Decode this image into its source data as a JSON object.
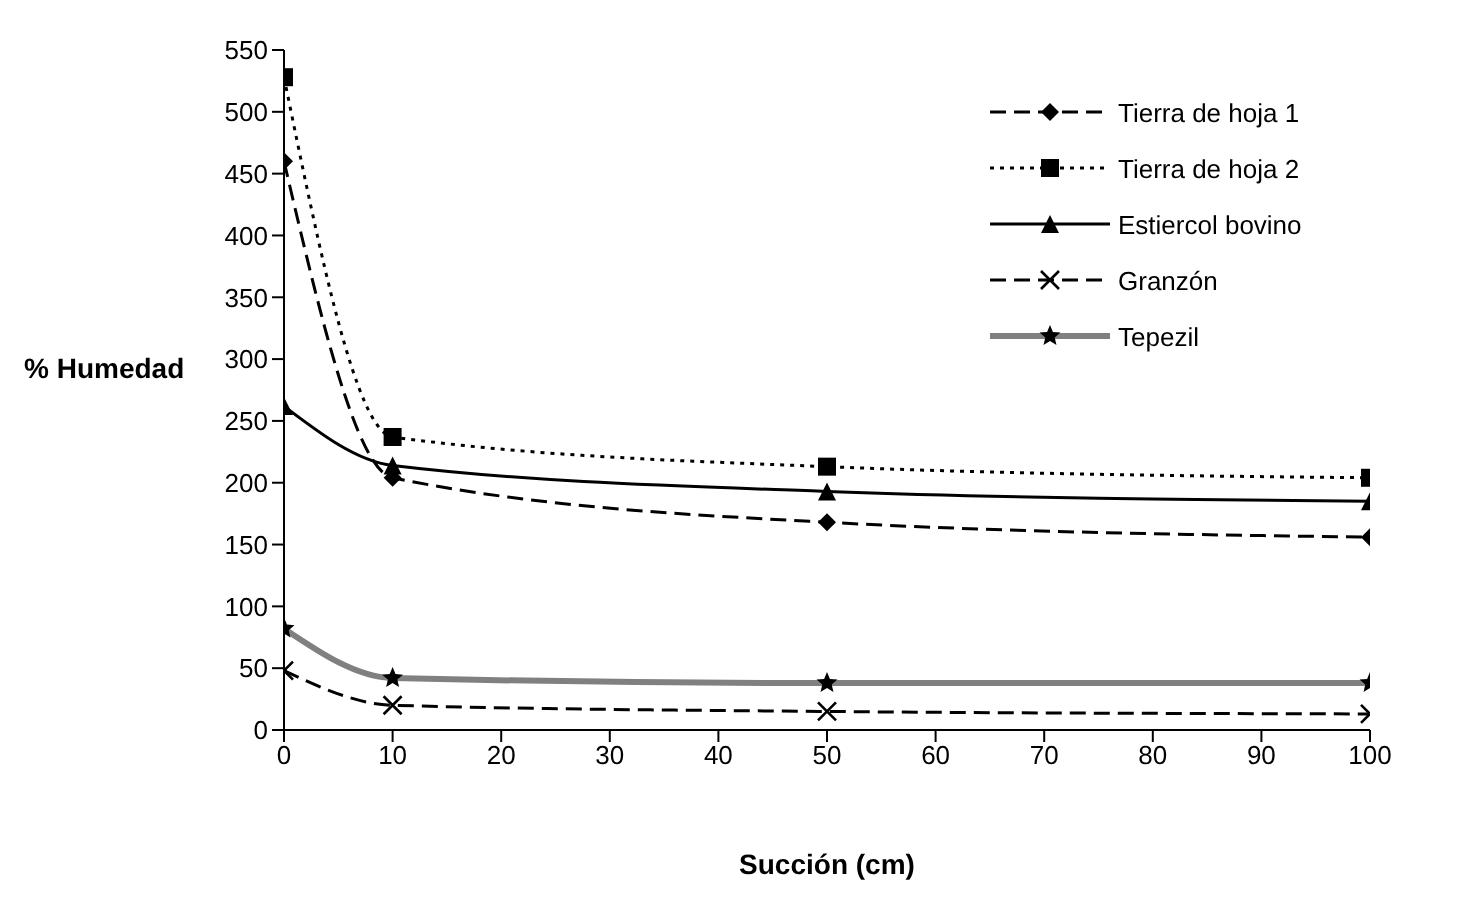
{
  "chart_data": {
    "type": "line",
    "xlabel": "Succión (cm)",
    "ylabel": "% Humedad",
    "x": [
      0,
      10,
      50,
      100
    ],
    "series": [
      {
        "name": "Tierra de hoja 1",
        "color": "#000000",
        "marker": "diamond",
        "line_style": "dashed",
        "values": [
          460,
          204,
          168,
          156
        ]
      },
      {
        "name": "Tierra de hoja 2",
        "color": "#000000",
        "marker": "square",
        "line_style": "dotted",
        "values": [
          528,
          237,
          213,
          204
        ]
      },
      {
        "name": "Estiercol bovino",
        "color": "#000000",
        "marker": "triangle",
        "line_style": "solid",
        "values": [
          262,
          214,
          193,
          185
        ]
      },
      {
        "name": "Granzón",
        "color": "#000000",
        "marker": "cross",
        "line_style": "dashed",
        "values": [
          48,
          20,
          15,
          13
        ]
      },
      {
        "name": "Tepezil",
        "color": "#808080",
        "marker": "star",
        "line_style": "solid",
        "values": [
          82,
          42,
          38,
          38
        ]
      }
    ],
    "xlim": [
      0,
      100
    ],
    "xticks": [
      0,
      10,
      20,
      30,
      40,
      50,
      60,
      70,
      80,
      90,
      100
    ],
    "ylim": [
      0,
      550
    ],
    "yticks": [
      0,
      50,
      100,
      150,
      200,
      250,
      300,
      350,
      400,
      450,
      500,
      550
    ],
    "grid": false,
    "legend": "top right"
  }
}
